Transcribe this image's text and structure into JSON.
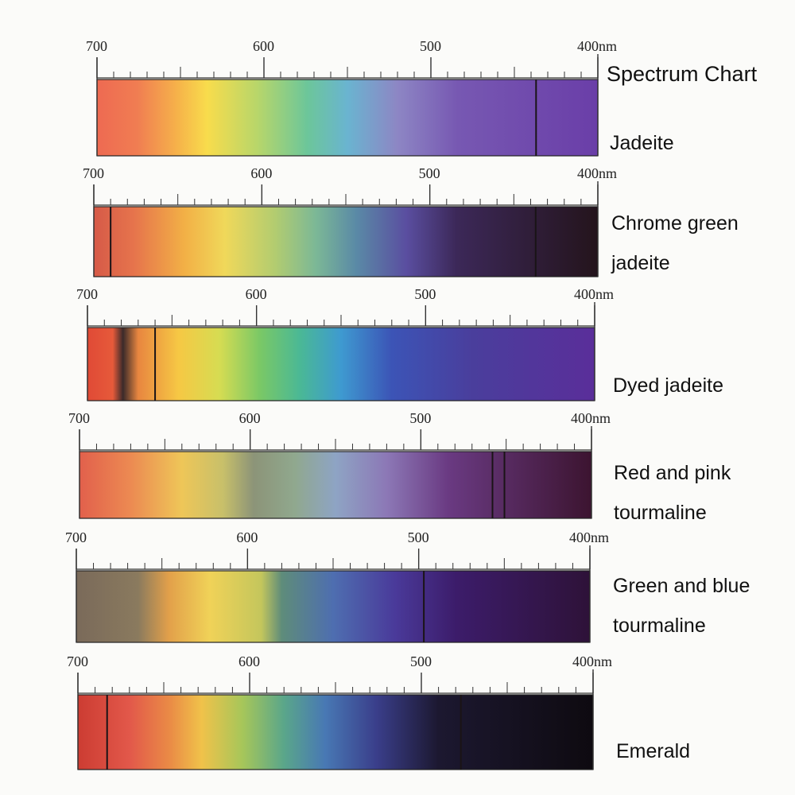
{
  "title": "Spectrum Chart",
  "scale_labels": [
    "700",
    "600",
    "500",
    "400nm"
  ],
  "colors": {
    "red": "#e8604c",
    "orange": "#f3a03f",
    "yellow": "#f4d84a",
    "green": "#8cc86a",
    "cyan": "#4fb8cf",
    "blue": "#4f6fc0",
    "violet": "#6a4aa8",
    "dark": "#2a1a2a"
  },
  "spectra": [
    {
      "label_lines": [
        "Jadeite"
      ],
      "absorption_lines_nm": [
        437
      ]
    },
    {
      "label_lines": [
        "Chrome green",
        "jadeite"
      ],
      "absorption_lines_nm": [
        437,
        690
      ]
    },
    {
      "label_lines": [
        "Dyed jadeite"
      ],
      "absorption_lines_nm": [
        660
      ]
    },
    {
      "label_lines": [
        "Red and pink",
        "tourmaline"
      ],
      "absorption_lines_nm": [
        458,
        451
      ]
    },
    {
      "label_lines": [
        "Green and blue",
        "tourmaline"
      ],
      "absorption_lines_nm": [
        497
      ]
    },
    {
      "label_lines": [
        "Emerald"
      ],
      "absorption_lines_nm": [
        683,
        477
      ]
    }
  ]
}
